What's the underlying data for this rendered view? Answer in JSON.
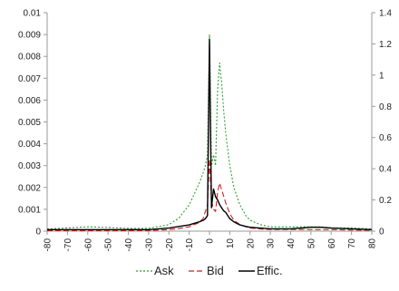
{
  "chart_data": {
    "type": "line",
    "x": [
      -80,
      -70,
      -60,
      -50,
      -40,
      -30,
      -20,
      -15,
      -10,
      -5,
      -3,
      -2,
      -1,
      0,
      1,
      2,
      3,
      4,
      5,
      6,
      7,
      8,
      10,
      12,
      15,
      18,
      20,
      25,
      30,
      40,
      50,
      55,
      60,
      70,
      80
    ],
    "y_left": {
      "ylim": [
        0,
        0.01
      ],
      "ticks": [
        "0",
        "0.001",
        "0.002",
        "0.003",
        "0.004",
        "0.005",
        "0.006",
        "0.007",
        "0.008",
        "0.009",
        "0.01"
      ]
    },
    "y_right": {
      "ylim": [
        0,
        1.4
      ],
      "ticks": [
        "0",
        "0.2",
        "0.4",
        "0.6",
        "0.8",
        "1",
        "1.2",
        "1.4"
      ]
    },
    "x_ticks": [
      "-80",
      "-70",
      "-60",
      "-50",
      "-40",
      "-30",
      "-20",
      "-10",
      "0",
      "10",
      "20",
      "30",
      "40",
      "50",
      "60",
      "70",
      "80"
    ],
    "series": [
      {
        "name": "Ask",
        "color": "#2ca02c",
        "dash": "dotted",
        "axis": "left",
        "values": [
          0.0001,
          0.00015,
          0.0002,
          0.00017,
          0.00013,
          0.00013,
          0.0003,
          0.0006,
          0.0012,
          0.0022,
          0.0027,
          0.003,
          0.0035,
          0.009,
          0.003,
          0.0035,
          0.003,
          0.0065,
          0.0077,
          0.0068,
          0.0055,
          0.0045,
          0.003,
          0.002,
          0.0012,
          0.0007,
          0.0005,
          0.0003,
          0.0002,
          0.0002,
          0.0002,
          0.0002,
          0.00015,
          0.00015,
          0.0001
        ]
      },
      {
        "name": "Bid",
        "color": "#cc2222",
        "dash": "dashed",
        "axis": "left",
        "values": [
          2e-05,
          3e-05,
          3e-05,
          3e-05,
          3e-05,
          3e-05,
          7e-05,
          0.00012,
          0.0002,
          0.0004,
          0.0006,
          0.0009,
          0.0012,
          0.0033,
          0.0014,
          0.001,
          0.0009,
          0.0018,
          0.0022,
          0.0019,
          0.0016,
          0.0013,
          0.0008,
          0.0005,
          0.0003,
          0.0002,
          0.00015,
          0.0001,
          8e-05,
          8e-05,
          7e-05,
          7e-05,
          7e-05,
          5e-05,
          4e-05
        ]
      },
      {
        "name": "Effic.",
        "color": "#000000",
        "dash": "solid",
        "axis": "right",
        "values": [
          0.01,
          0.01,
          0.01,
          0.01,
          0.01,
          0.01,
          0.02,
          0.03,
          0.04,
          0.06,
          0.07,
          0.08,
          0.1,
          1.23,
          0.15,
          0.27,
          0.22,
          0.2,
          0.17,
          0.15,
          0.13,
          0.12,
          0.08,
          0.06,
          0.04,
          0.03,
          0.025,
          0.02,
          0.015,
          0.015,
          0.025,
          0.025,
          0.02,
          0.015,
          0.01
        ]
      }
    ],
    "legend": {
      "position": "bottom",
      "entries": [
        "Ask",
        "Bid",
        "Effic."
      ]
    },
    "grid": false
  }
}
